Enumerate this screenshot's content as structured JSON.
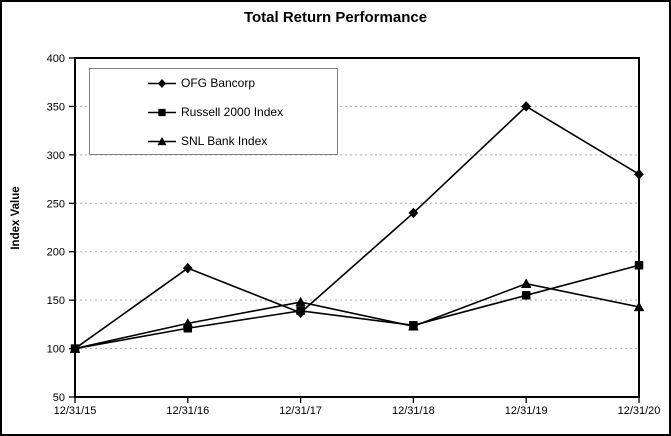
{
  "chart_data": {
    "type": "line",
    "title": "Total Return Performance",
    "ylabel": "Index Value",
    "xlabel": "",
    "categories": [
      "12/31/15",
      "12/31/16",
      "12/31/17",
      "12/31/18",
      "12/31/19",
      "12/31/20"
    ],
    "series": [
      {
        "name": "OFG Bancorp",
        "marker": "diamond",
        "color": "#000000",
        "values": [
          100,
          183,
          137,
          240,
          350,
          280
        ]
      },
      {
        "name": "Russell 2000 Index",
        "marker": "square",
        "color": "#000000",
        "values": [
          100,
          121,
          139,
          124,
          155,
          186
        ]
      },
      {
        "name": "SNL Bank Index",
        "marker": "triangle",
        "color": "#000000",
        "values": [
          100,
          126,
          148,
          123,
          167,
          143
        ]
      }
    ],
    "ylim": [
      50,
      400
    ],
    "yticks": [
      50,
      100,
      150,
      200,
      250,
      300,
      350,
      400
    ],
    "grid": "horizontal dashed gridlines at 100-350",
    "legend_position": "top-left inside plot area",
    "colors": {
      "line": "#000000",
      "grid": "#a8a8a8",
      "background": "#ffffff",
      "frame": "#000000",
      "outer_border": "#000000",
      "legend_border": "#808080"
    }
  }
}
